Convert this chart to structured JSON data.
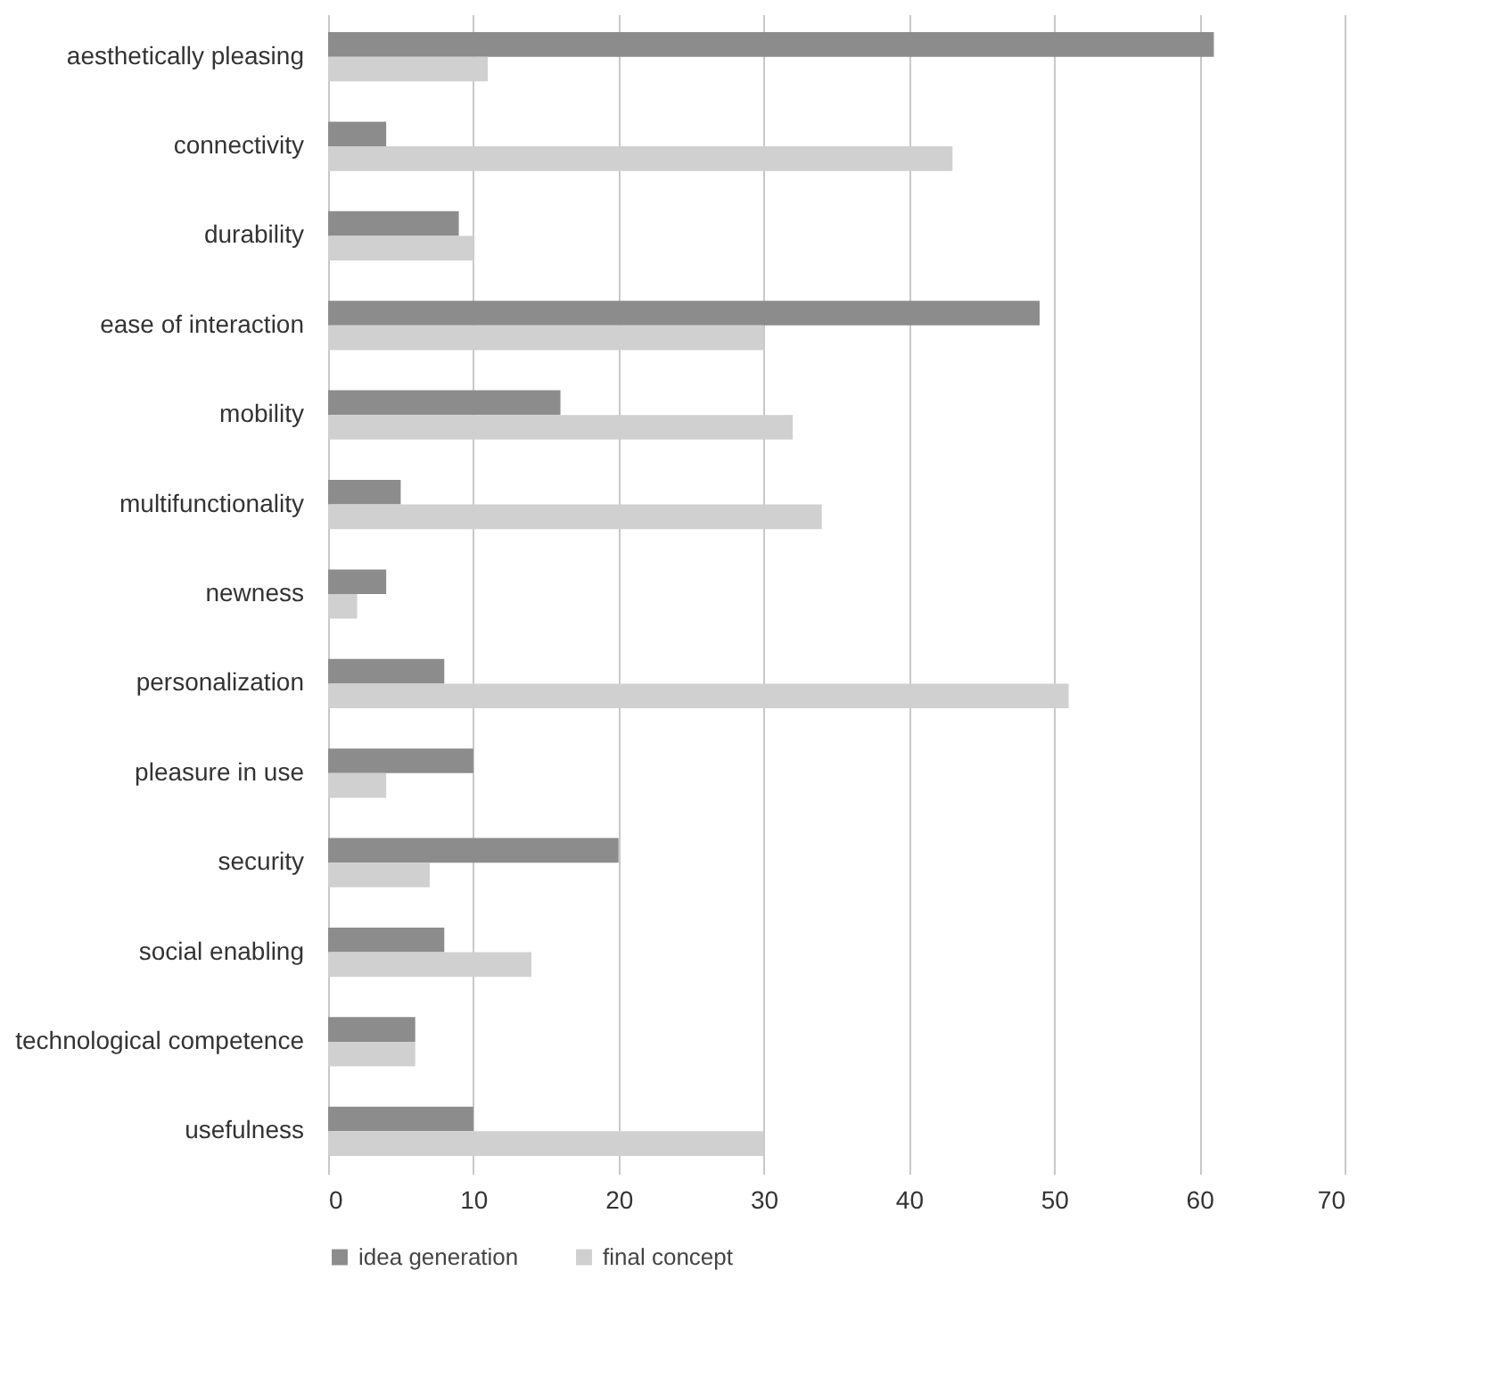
{
  "chart_data": {
    "type": "bar",
    "orientation": "horizontal",
    "categories": [
      "aesthetically pleasing",
      "connectivity",
      "durability",
      "ease of interaction",
      "mobility",
      "multifunctionality",
      "newness",
      "personalization",
      "pleasure in use",
      "security",
      "social enabling",
      "technological competence",
      "usefulness"
    ],
    "series": [
      {
        "name": "idea generation",
        "color": "#8c8c8c",
        "values": [
          61,
          4,
          9,
          49,
          16,
          5,
          4,
          8,
          10,
          20,
          8,
          6,
          10
        ]
      },
      {
        "name": "final concept",
        "color": "#d0d0d0",
        "values": [
          11,
          43,
          10,
          30,
          32,
          34,
          2,
          51,
          4,
          7,
          14,
          6,
          30
        ]
      }
    ],
    "xlim": [
      0,
      70
    ],
    "xticks": [
      0,
      10,
      20,
      30,
      40,
      50,
      60,
      70
    ],
    "grid": "x",
    "legend": "bottom"
  }
}
